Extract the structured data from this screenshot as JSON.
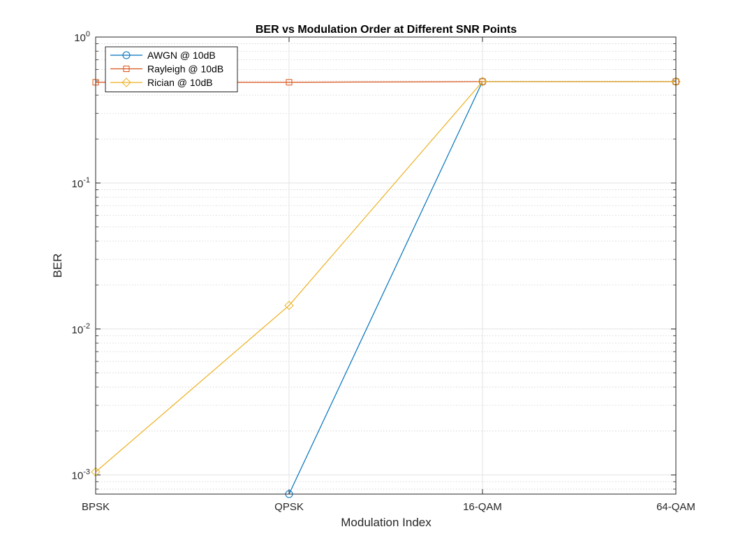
{
  "chart_data": {
    "type": "line",
    "title": "BER vs Modulation Order at Different SNR Points",
    "xlabel": "Modulation Index",
    "ylabel": "BER",
    "categories": [
      "BPSK",
      "QPSK",
      "16-QAM",
      "64-QAM"
    ],
    "yscale": "log",
    "ylim": [
      0.00074,
      1
    ],
    "yticks": [
      {
        "value": 1,
        "base": "10",
        "exp": "0"
      },
      {
        "value": 0.1,
        "base": "10",
        "exp": "-1"
      },
      {
        "value": 0.01,
        "base": "10",
        "exp": "-2"
      },
      {
        "value": 0.001,
        "base": "10",
        "exp": "-3"
      }
    ],
    "grid": true,
    "minor_grid": true,
    "legend_position": "top-left",
    "series": [
      {
        "name": "AWGN @ 10dB",
        "color": "#0072BD",
        "marker": "circle",
        "values": [
          null,
          0.00074,
          0.495,
          0.495
        ]
      },
      {
        "name": "Rayleigh @ 10dB",
        "color": "#D95319",
        "marker": "square",
        "values": [
          0.49,
          0.49,
          0.495,
          0.495
        ]
      },
      {
        "name": "Rician @ 10dB",
        "color": "#EDB120",
        "marker": "diamond",
        "values": [
          0.00105,
          0.0145,
          0.495,
          0.495
        ]
      }
    ]
  }
}
